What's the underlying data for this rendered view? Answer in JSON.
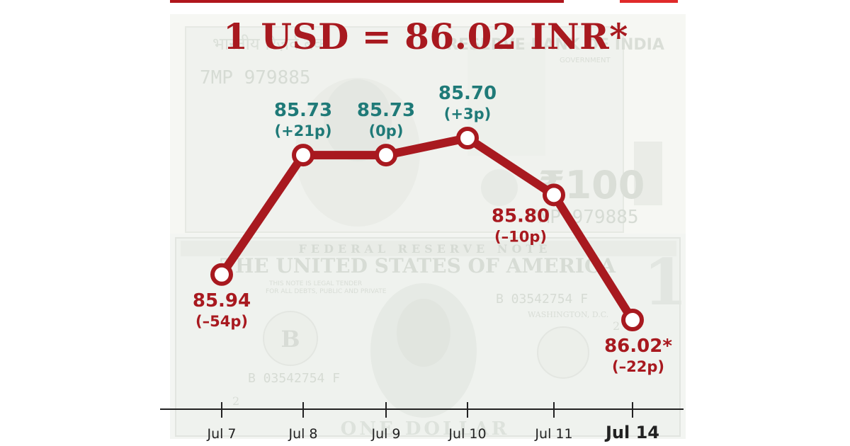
{
  "chart_data": {
    "type": "line",
    "title": "1 USD = 86.02 INR*",
    "categories": [
      "Jul 7",
      "Jul 8",
      "Jul 9",
      "Jul 10",
      "Jul 11",
      "Jul 14"
    ],
    "values": [
      85.94,
      85.73,
      85.73,
      85.7,
      85.8,
      86.02
    ],
    "value_labels": [
      "85.94",
      "85.73",
      "85.73",
      "85.70",
      "85.80",
      "86.02*"
    ],
    "change_labels": [
      "(–54p)",
      "(+21p)",
      "(0p)",
      "(+3p)",
      "(–10p)",
      "(–22p)"
    ],
    "y_reversed": true,
    "grid": false,
    "legend": "none",
    "background": "faded banknote imagery (Indian 100 rupee note and US one dollar bill)",
    "colors": {
      "line": "#a8191f",
      "marker_fill": "#ffffff",
      "appreciation_label": "#1f7a78",
      "depreciation_label": "#a8191f",
      "axis": "#222222"
    }
  },
  "bill_text": {
    "inr_hindi": "भारतीय रिज़र्व बैंक",
    "inr_header": "RESERVE BANK OF INDIA",
    "inr_serial": "7MP 979885",
    "inr_serial_right": "7MP 979885",
    "inr_denom": "₹100",
    "inr_govt": "GOVERNMENT",
    "usd_reserve": "FEDERAL RESERVE NOTE",
    "usd_header": "THE UNITED STATES OF AMERICA",
    "usd_tender": "THIS NOTE IS LEGAL TENDER",
    "usd_debts": "FOR ALL DEBTS, PUBLIC AND PRIVATE",
    "usd_serial": "B 03542754 F",
    "usd_city": "WASHINGTON, D.C.",
    "usd_seal": "B",
    "usd_denom": "1",
    "usd_small_2": "2",
    "usd_bottom": "ONE DOLLAR"
  }
}
